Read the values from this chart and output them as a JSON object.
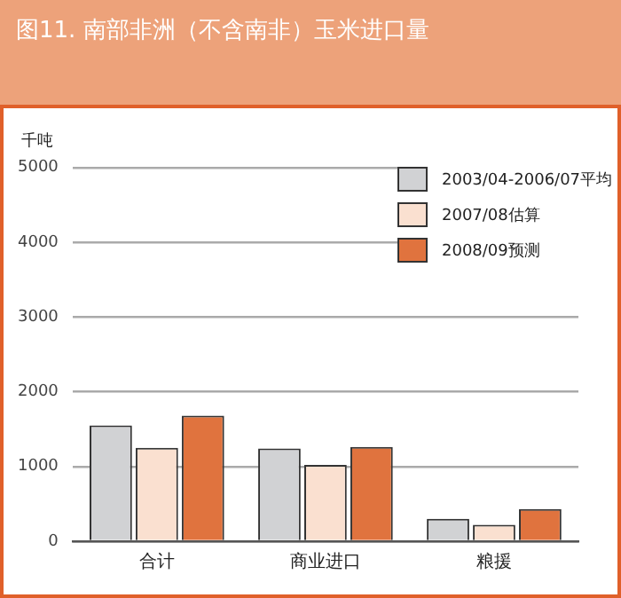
{
  "chart_data": {
    "type": "bar",
    "title": "图11. 南部非洲（不含南非）玉米进口量",
    "ylabel": "千吨",
    "categories": [
      "合计",
      "商业进口",
      "粮援"
    ],
    "series": [
      {
        "name": "2003/04-2006/07平均",
        "color": "#d1d2d4",
        "values": [
          1550,
          1240,
          300
        ]
      },
      {
        "name": "2007/08估算",
        "color": "#fae0d0",
        "values": [
          1250,
          1020,
          220
        ]
      },
      {
        "name": "2008/09预测",
        "color": "#e0733e",
        "values": [
          1680,
          1260,
          430
        ]
      }
    ],
    "ylim": [
      0,
      5000
    ],
    "yticks": [
      0,
      1000,
      2000,
      3000,
      4000,
      5000
    ],
    "grid": "y",
    "legend": "top right"
  }
}
